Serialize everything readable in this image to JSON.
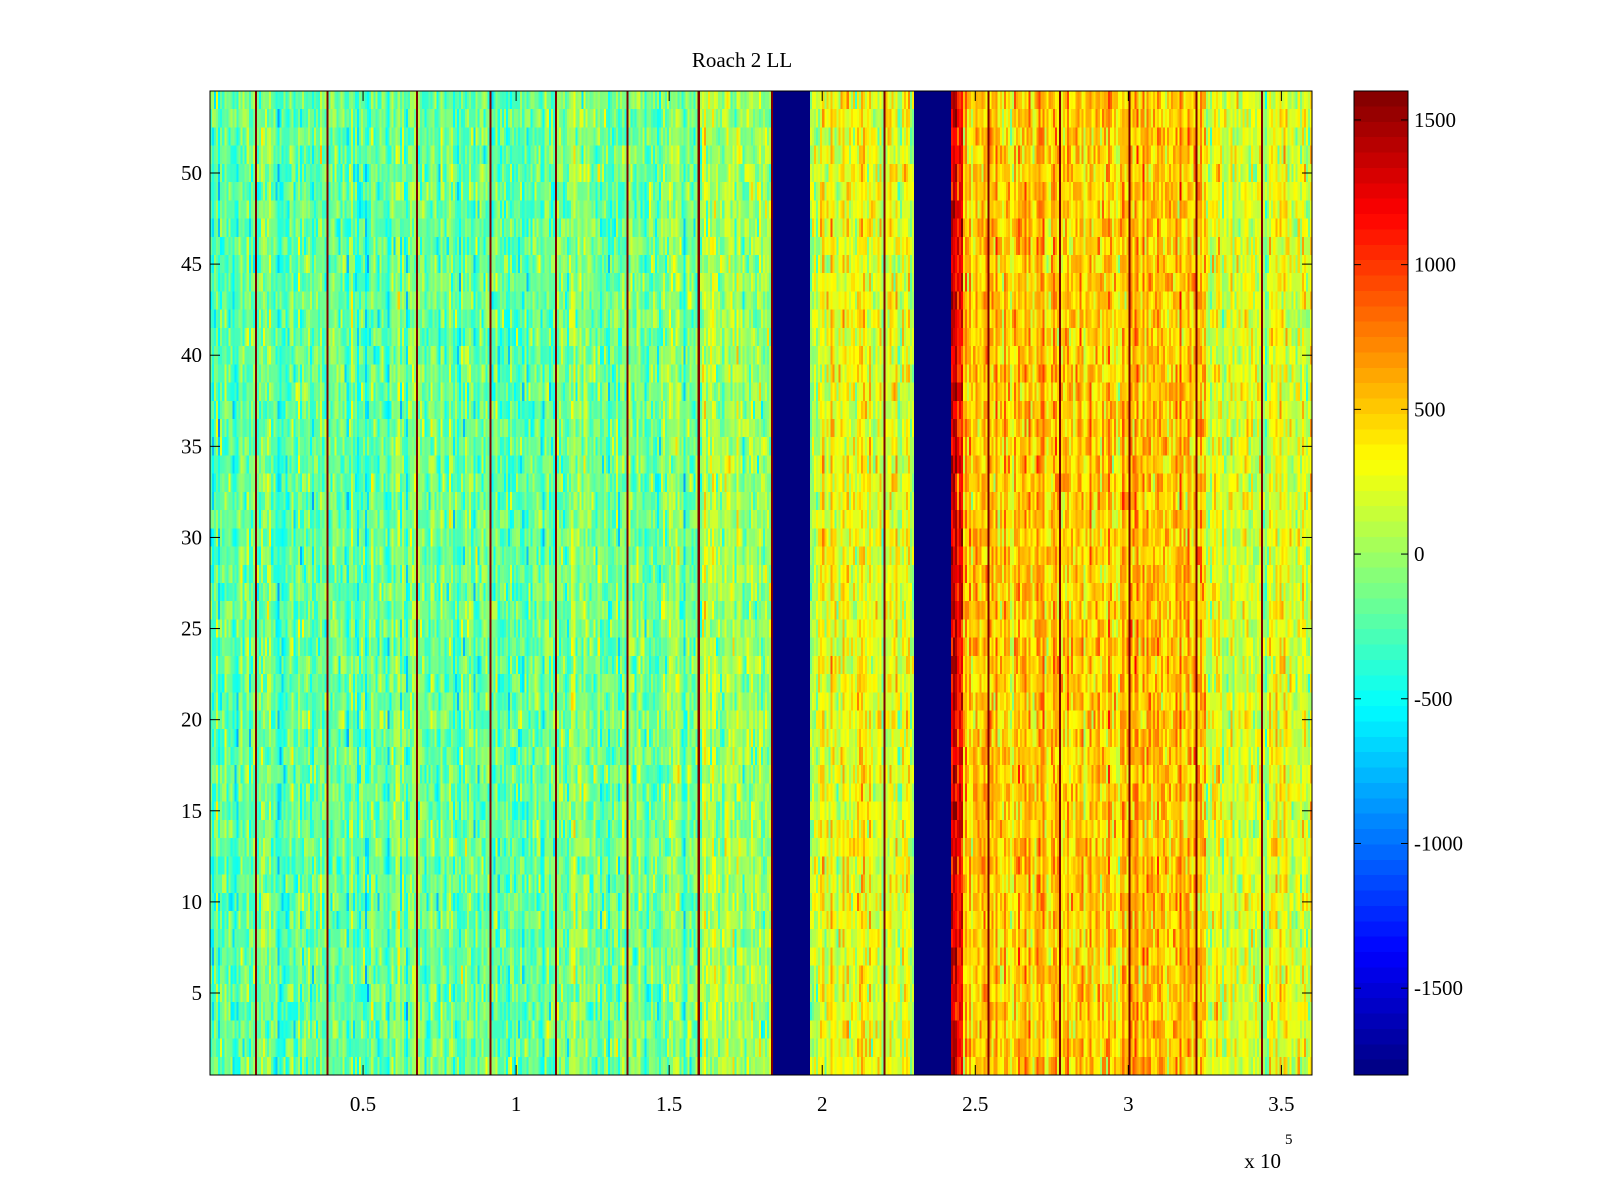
{
  "chart_data": {
    "type": "heatmap",
    "title": "Roach 2 LL",
    "xlabel": "",
    "ylabel": "",
    "x_multiplier_label": "x 10",
    "x_multiplier_exponent": "5",
    "xlim": [
      0,
      3.6
    ],
    "ylim": [
      0.5,
      54.5
    ],
    "rows": 54,
    "columns": 540,
    "x_ticks": [
      {
        "value": 0.5,
        "label": "0.5"
      },
      {
        "value": 1,
        "label": "1"
      },
      {
        "value": 1.5,
        "label": "1.5"
      },
      {
        "value": 2,
        "label": "2"
      },
      {
        "value": 2.5,
        "label": "2.5"
      },
      {
        "value": 3,
        "label": "3"
      },
      {
        "value": 3.5,
        "label": "3.5"
      }
    ],
    "y_ticks": [
      {
        "value": 5,
        "label": "5"
      },
      {
        "value": 10,
        "label": "10"
      },
      {
        "value": 15,
        "label": "15"
      },
      {
        "value": 20,
        "label": "20"
      },
      {
        "value": 25,
        "label": "25"
      },
      {
        "value": 30,
        "label": "30"
      },
      {
        "value": 35,
        "label": "35"
      },
      {
        "value": 40,
        "label": "40"
      },
      {
        "value": 45,
        "label": "45"
      },
      {
        "value": 50,
        "label": "50"
      }
    ],
    "colorbar": {
      "colormap": "jet",
      "range": [
        -1800,
        1600
      ],
      "ticks": [
        {
          "value": 1500,
          "label": "1500"
        },
        {
          "value": 1000,
          "label": "1000"
        },
        {
          "value": 500,
          "label": "500"
        },
        {
          "value": 0,
          "label": "0"
        },
        {
          "value": -500,
          "label": "-500"
        },
        {
          "value": -1000,
          "label": "-1000"
        },
        {
          "value": -1500,
          "label": "-1500"
        }
      ]
    },
    "blanked_bands": [
      {
        "x_start": 1.84,
        "x_end": 1.96,
        "value": -1800
      },
      {
        "x_start": 2.3,
        "x_end": 2.42,
        "value": -1800
      }
    ],
    "column_mean_profile": [
      {
        "x_start": 0.0,
        "x_end": 0.85,
        "mean": -200
      },
      {
        "x_start": 0.85,
        "x_end": 1.6,
        "mean": -150
      },
      {
        "x_start": 1.6,
        "x_end": 1.84,
        "mean": 0
      },
      {
        "x_start": 1.96,
        "x_end": 2.3,
        "mean": 200
      },
      {
        "x_start": 2.42,
        "x_end": 2.46,
        "mean": 1300
      },
      {
        "x_start": 2.46,
        "x_end": 3.25,
        "mean": 500
      },
      {
        "x_start": 3.25,
        "x_end": 3.6,
        "mean": 150
      }
    ],
    "spike_columns": [
      {
        "x": 0.15,
        "value": 1600
      },
      {
        "x": 0.38,
        "value": 1600
      },
      {
        "x": 0.67,
        "value": 1600
      },
      {
        "x": 0.91,
        "value": 1600
      },
      {
        "x": 1.13,
        "value": 1600
      },
      {
        "x": 1.36,
        "value": 1600
      },
      {
        "x": 1.59,
        "value": 1600
      },
      {
        "x": 1.83,
        "value": 1600
      },
      {
        "x": 2.2,
        "value": 1600
      },
      {
        "x": 2.3,
        "value": 1600
      },
      {
        "x": 2.54,
        "value": 1600
      },
      {
        "x": 2.77,
        "value": 1600
      },
      {
        "x": 3.0,
        "value": 1600
      },
      {
        "x": 3.22,
        "value": 1600
      },
      {
        "x": 3.43,
        "value": 1600
      }
    ],
    "grid": false,
    "legend": "none"
  }
}
